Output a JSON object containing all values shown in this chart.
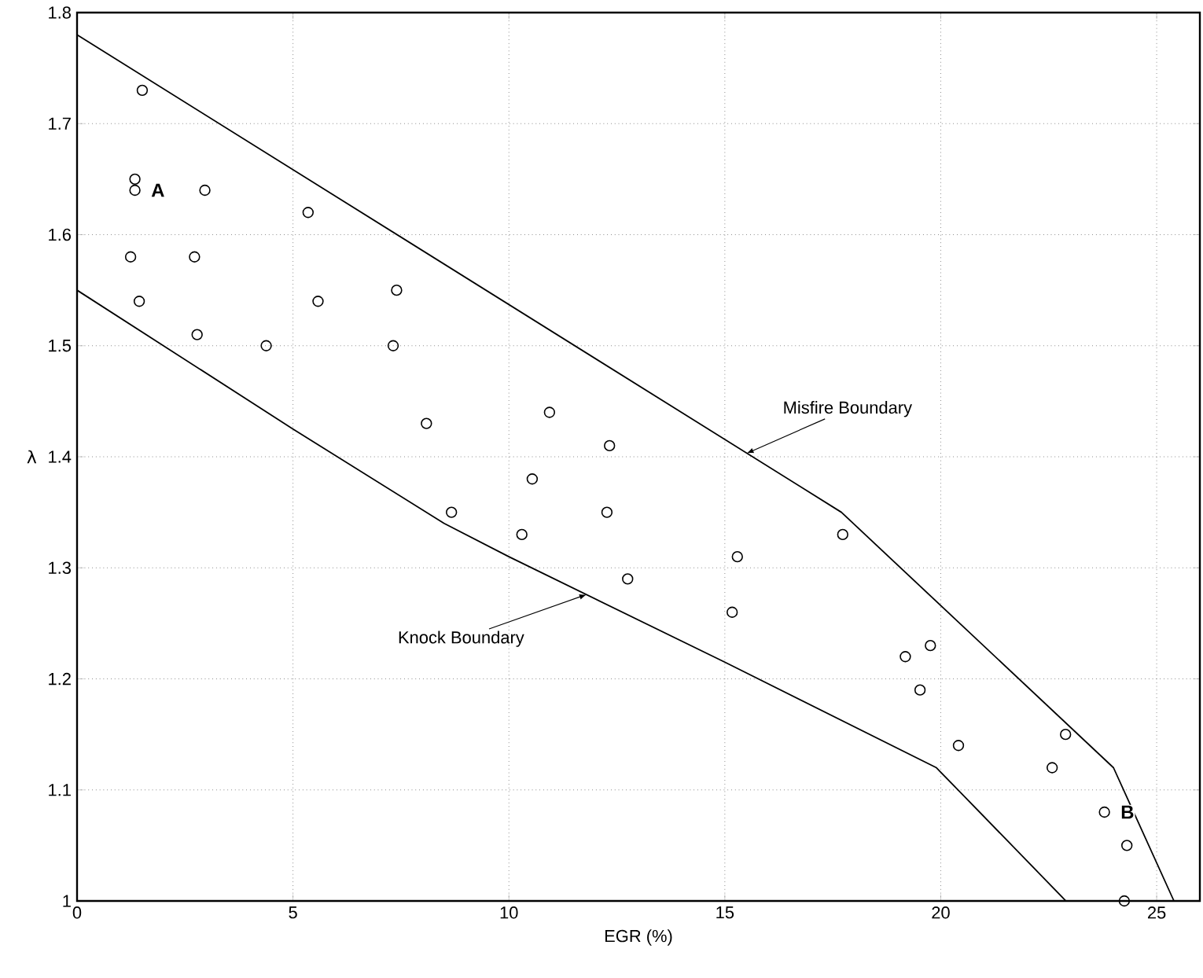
{
  "chart_data": {
    "type": "scatter",
    "xlabel": "EGR (%)",
    "ylabel": "λ",
    "xlim": [
      0,
      26
    ],
    "ylim": [
      1,
      1.8
    ],
    "xticks": [
      0,
      5,
      10,
      15,
      20,
      25
    ],
    "yticks": [
      1,
      1.1,
      1.2,
      1.3,
      1.4,
      1.5,
      1.6,
      1.7,
      1.8
    ],
    "grid": true,
    "series": [
      {
        "marker": "circle",
        "color": "#000000",
        "x": [
          1.51,
          1.34,
          1.34,
          2.96,
          5.35,
          1.24,
          2.72,
          1.44,
          5.58,
          2.78,
          4.38,
          7.4,
          7.32,
          8.09,
          10.94,
          12.33,
          10.54,
          8.67,
          10.3,
          12.27,
          12.75,
          17.73,
          15.29,
          15.17,
          19.18,
          19.76,
          19.52,
          20.41,
          22.89,
          22.58,
          23.79,
          24.31,
          24.25
        ],
        "values": [
          1.73,
          1.65,
          1.64,
          1.64,
          1.62,
          1.58,
          1.58,
          1.54,
          1.54,
          1.51,
          1.5,
          1.55,
          1.5,
          1.43,
          1.44,
          1.41,
          1.38,
          1.35,
          1.33,
          1.35,
          1.29,
          1.33,
          1.31,
          1.26,
          1.22,
          1.23,
          1.19,
          1.14,
          1.15,
          1.12,
          1.08,
          1.05,
          1.0
        ]
      },
      {
        "type": "line",
        "marker": "none",
        "line_style": "solid",
        "color": "#000000",
        "x": [
          0,
          17.7,
          24.0,
          25.4
        ],
        "values": [
          1.78,
          1.35,
          1.12,
          1.0
        ]
      },
      {
        "type": "line",
        "marker": "none",
        "line_style": "solid",
        "color": "#000000",
        "x": [
          0,
          5,
          8.5,
          10,
          15,
          19.9,
          22.9
        ],
        "values": [
          1.55,
          1.425,
          1.34,
          1.31,
          1.215,
          1.12,
          1.0
        ]
      }
    ],
    "annotations": [
      {
        "text": "A",
        "x": 1.34,
        "y": 1.64
      },
      {
        "text": "B",
        "x": 23.79,
        "y": 1.08
      },
      {
        "text": "Misfire Boundary",
        "x": 15.5,
        "y": 1.403
      },
      {
        "text": "Knock Boundary",
        "x": 11.8,
        "y": 1.276
      }
    ]
  }
}
